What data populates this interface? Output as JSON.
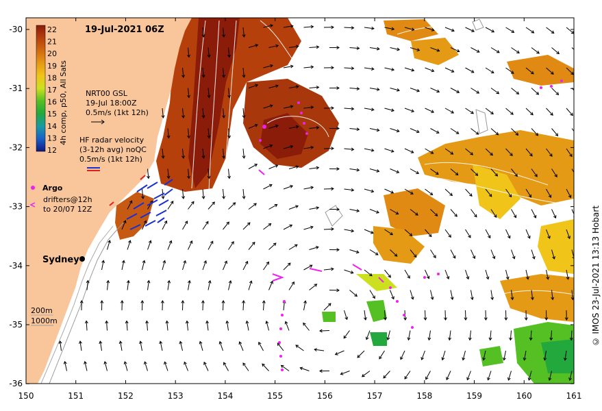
{
  "map": {
    "title": "19-Jul-2021 06Z",
    "x_ticks": [
      "150",
      "151",
      "152",
      "153",
      "154",
      "155",
      "156",
      "157",
      "158",
      "159",
      "160",
      "161"
    ],
    "y_ticks": [
      "-30",
      "-31",
      "-32",
      "-33",
      "-34",
      "-35",
      "-36"
    ],
    "colorbar": {
      "label": "4h comp, p50, All Sats",
      "values": [
        "22",
        "21",
        "20",
        "19",
        "18",
        "17",
        "16",
        "15",
        "14",
        "13",
        "12"
      ],
      "colors": [
        "#8b1c0a",
        "#b5400c",
        "#d06a10",
        "#e49a14",
        "#f0c418",
        "#cce020",
        "#55c024",
        "#22a83c",
        "#1a9aa4",
        "#1860c8",
        "#101880"
      ]
    },
    "legend": {
      "gsl_title": "NRT00 GSL",
      "gsl_time": "19-Jul 18:00Z",
      "gsl_scale": "0.5m/s (1kt 12h)",
      "hf_title": "HF radar velocity",
      "hf_avg": "(3-12h avg) noQC",
      "hf_scale": "0.5m/s (1kt 12h)",
      "argo_label": "Argo",
      "drifters_label": "drifters@12h",
      "drifters_to": "to 20/07 12Z"
    },
    "city": "Sydney",
    "depth_labels": [
      "200m",
      "1000m"
    ],
    "credit": "© IMOS 23-Jul-2021 13:13 Hobart",
    "colors": {
      "land": "#f9c69b",
      "ocean": "#ffffff",
      "drifter": "#ee22ee",
      "hf": "#1a2fd0"
    }
  }
}
